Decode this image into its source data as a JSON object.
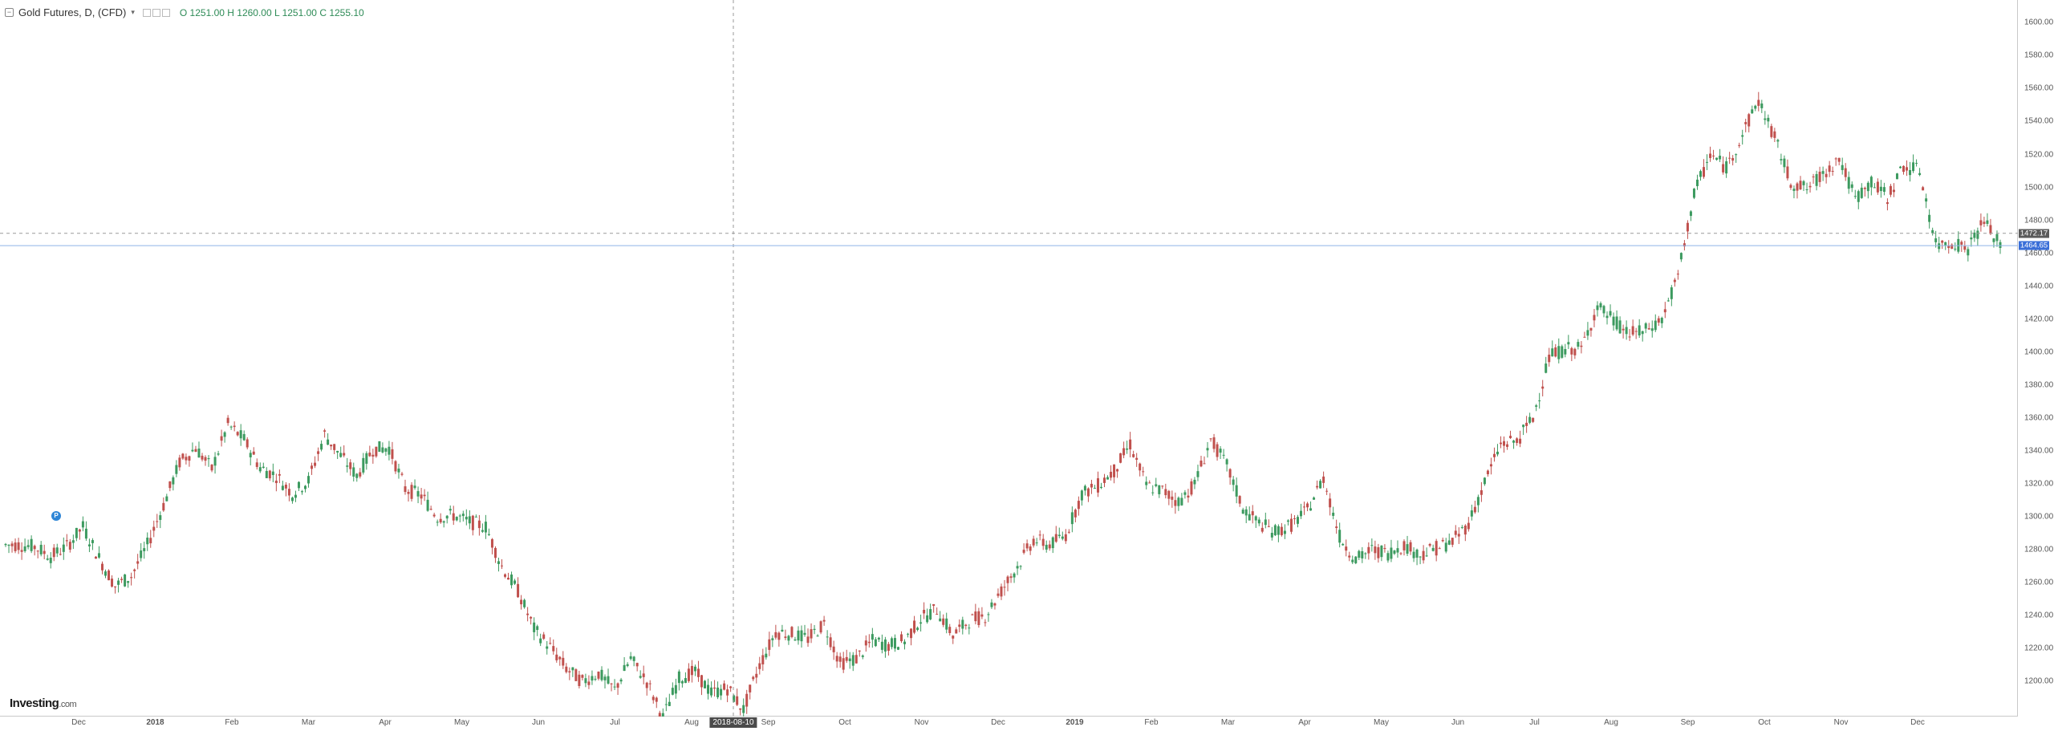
{
  "legend": {
    "title": "Gold Futures, D, (CFD)",
    "open": "O 1251.00",
    "high": "H 1260.00",
    "low": "L 1251.00",
    "close": "C 1255.10"
  },
  "logo": {
    "brand": "Investing",
    "suffix": ".com"
  },
  "marker_label": "P",
  "crosshair": {
    "date": "2018-08-10",
    "price": 1472.17
  },
  "last_price": 1464.65,
  "colors": {
    "up": "#3c9a5f",
    "down": "#c0504d",
    "last_price": "#3a6fd8",
    "crosshair_badge": "#5a5a5a"
  },
  "chart_data": {
    "type": "candlestick",
    "title": "Gold Futures, D, (CFD)",
    "ylim": [
      1190,
      1605
    ],
    "y_ticks": [
      1200,
      1220,
      1240,
      1260,
      1280,
      1300,
      1320,
      1340,
      1360,
      1380,
      1400,
      1420,
      1440,
      1460,
      1480,
      1500,
      1520,
      1540,
      1560,
      1580,
      1600
    ],
    "x_ticks": [
      "Dec",
      "2018",
      "Feb",
      "Mar",
      "Apr",
      "May",
      "Jun",
      "Jul",
      "Aug",
      "Sep",
      "Oct",
      "Nov",
      "Dec",
      "2019",
      "Feb",
      "Mar",
      "Apr",
      "May",
      "Jun",
      "Jul",
      "Aug",
      "Sep",
      "Oct",
      "Nov",
      "Dec"
    ],
    "weekly_closes": [
      1283,
      1282,
      1276,
      1282,
      1294,
      1275,
      1258,
      1264,
      1283,
      1307,
      1333,
      1342,
      1329,
      1356,
      1347,
      1330,
      1325,
      1314,
      1322,
      1350,
      1337,
      1325,
      1341,
      1342,
      1317,
      1313,
      1300,
      1301,
      1297,
      1294,
      1270,
      1255,
      1232,
      1221,
      1208,
      1200,
      1205,
      1195,
      1214,
      1200,
      1178,
      1202,
      1206,
      1193,
      1196,
      1183,
      1210,
      1230,
      1229,
      1226,
      1235,
      1211,
      1214,
      1225,
      1222,
      1225,
      1238,
      1244,
      1228,
      1237,
      1240,
      1255,
      1270,
      1286,
      1283,
      1289,
      1314,
      1319,
      1328,
      1344,
      1319,
      1316,
      1309,
      1320,
      1347,
      1331,
      1305,
      1296,
      1291,
      1295,
      1304,
      1324,
      1288,
      1274,
      1280,
      1278,
      1283,
      1277,
      1281,
      1285,
      1296,
      1321,
      1344,
      1346,
      1360,
      1397,
      1402,
      1402,
      1428,
      1419,
      1411,
      1413,
      1420,
      1446,
      1496,
      1520,
      1512,
      1532,
      1553,
      1530,
      1503,
      1499,
      1508,
      1518,
      1493,
      1503,
      1494,
      1513,
      1510,
      1465,
      1467,
      1463,
      1480,
      1464
    ]
  }
}
